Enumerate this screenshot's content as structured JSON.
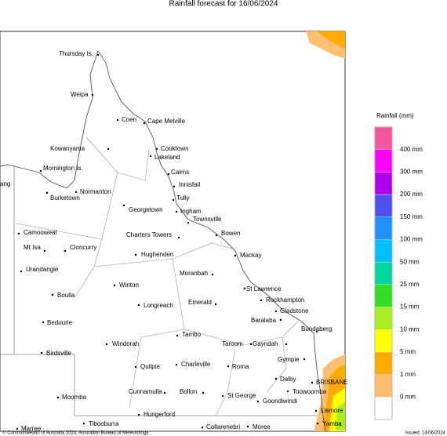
{
  "title": "Rainfall forecast for 16/06/2024",
  "places": [
    "Thursday Is.",
    "Weipa",
    "Coen",
    "Cape Melville",
    "Cooktown",
    "Kowanyama",
    "Lakeland",
    "Mornington Is.",
    "Cairns",
    "Innisfail",
    "Normanton",
    "Burketown",
    "Tully",
    "Georgetown",
    "Ingham",
    "Townsville",
    "Camooweal",
    "Charters Towers",
    "Bowen",
    "Mt Isa",
    "Cloncurry",
    "Mackay",
    "Hughenden",
    "Urandangie",
    "Moranbah",
    "St Lawrence",
    "Winton",
    "Boulia",
    "Rockhampton",
    "Emerald",
    "Longreach",
    "Gladstone",
    "Bedourie",
    "Baralaba",
    "Bundaberg",
    "Tambo",
    "Windorah",
    "Taroom",
    "Gayndah",
    "Birdsville",
    "Gympie",
    "Charleville",
    "Quilpie",
    "Roma",
    "BRISBANE",
    "Dalby",
    "Toowoomba",
    "Cunnamulla",
    "Bollon",
    "Moomba",
    "St George",
    "Goondiwindi",
    "Lismore",
    "Hungerford",
    "Yamba",
    "Tibooburra",
    "Collarenebri",
    "Moree",
    "Marree",
    "ang"
  ],
  "legend": {
    "title": "Rainfall (mm)",
    "labels": [
      "400 mm",
      "300 mm",
      "200 mm",
      "150 mm",
      "100 mm",
      "50 mm",
      "25 mm",
      "15 mm",
      "10 mm",
      "5 mm",
      "1 mm",
      "0 mm"
    ],
    "colors": [
      "#f5559b",
      "#ff00ff",
      "#b000f0",
      "#5050f5",
      "#1e90ff",
      "#00bfff",
      "#00d8a0",
      "#33dd22",
      "#aaee22",
      "#ffff00",
      "#ffaa00",
      "#fdc070",
      "#ffffff"
    ]
  },
  "footer": {
    "copyright": "© Commonwealth of Australia 2024, Australian Bureau of Meteorology",
    "issued": "Issued: 14/06/2024"
  }
}
